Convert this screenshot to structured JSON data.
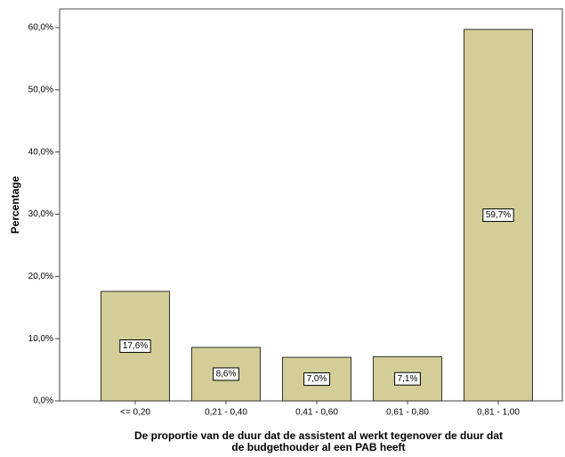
{
  "chart_data": {
    "type": "bar",
    "xlabel": [
      "De proportie van de duur dat de assistent al werkt tegenover de duur dat",
      "de budgethouder al een PAB heeft"
    ],
    "ylabel": "Percentage",
    "categories": [
      "<= 0,20",
      "0,21 - 0,40",
      "0,41 - 0,60",
      "0,61 - 0,80",
      "0,81 - 1,00"
    ],
    "values": [
      17.6,
      8.6,
      7.0,
      7.1,
      59.7
    ],
    "value_labels": [
      "17,6%",
      "8,6%",
      "7,0%",
      "7,1%",
      "59,7%"
    ],
    "color": "#d3ce97",
    "ylim": [
      0,
      63
    ],
    "yticks": [
      {
        "value": 0,
        "label": "0,0%"
      },
      {
        "value": 10,
        "label": "10,0%"
      },
      {
        "value": 20,
        "label": "20,0%"
      },
      {
        "value": 30,
        "label": "30,0%"
      },
      {
        "value": 40,
        "label": "40,0%"
      },
      {
        "value": 50,
        "label": "50,0%"
      },
      {
        "value": 60,
        "label": "60,0%"
      }
    ]
  }
}
